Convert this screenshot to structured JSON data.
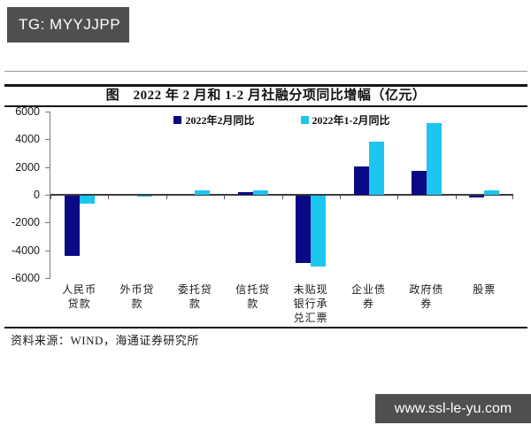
{
  "header": {
    "tg_label": "TG: MYYJJPP"
  },
  "figure": {
    "title": "图　2022 年 2 月和 1-2 月社融分项同比增幅（亿元）",
    "source": "资料来源：WIND，海通证券研究所"
  },
  "watermark": {
    "url_label": "www.ssl-le-yu.com"
  },
  "colors": {
    "box_gray": "#4f4f4f",
    "navy": "#0a0a84",
    "cyan": "#1cc6f0",
    "axis_gray": "#7a7a7a",
    "zero_line": "#3c3c3c"
  },
  "chart_data": {
    "type": "bar",
    "title": "2022 年 2 月和 1-2 月社融分项同比增幅（亿元）",
    "xlabel": "",
    "ylabel": "",
    "ylim": [
      -6000,
      6000
    ],
    "ytick_step": 2000,
    "grid": false,
    "legend_position": "top-center",
    "categories": [
      "人民币贷款",
      "外币贷款",
      "委托贷款",
      "信托贷款",
      "未贴现银行承兑汇票",
      "企业债券",
      "政府债券",
      "股票"
    ],
    "category_label_lines": [
      [
        "人民币",
        "贷款"
      ],
      [
        "外币贷",
        "款"
      ],
      [
        "委托贷",
        "款"
      ],
      [
        "信托贷",
        "款"
      ],
      [
        "未贴现",
        "银行承",
        "兑汇票"
      ],
      [
        "企业债",
        "券"
      ],
      [
        "政府债",
        "券"
      ],
      [
        "股票"
      ]
    ],
    "series": [
      {
        "name": "2022年2月同比",
        "color": "#0a0a84",
        "values": [
          -4329,
          0,
          0,
          185,
          -4870,
          2021,
          1705,
          -108
        ]
      },
      {
        "name": "2022年1-2月同比",
        "color": "#1cc6f0",
        "values": [
          -580,
          -80,
          340,
          330,
          -5100,
          3800,
          5150,
          300
        ]
      }
    ]
  }
}
